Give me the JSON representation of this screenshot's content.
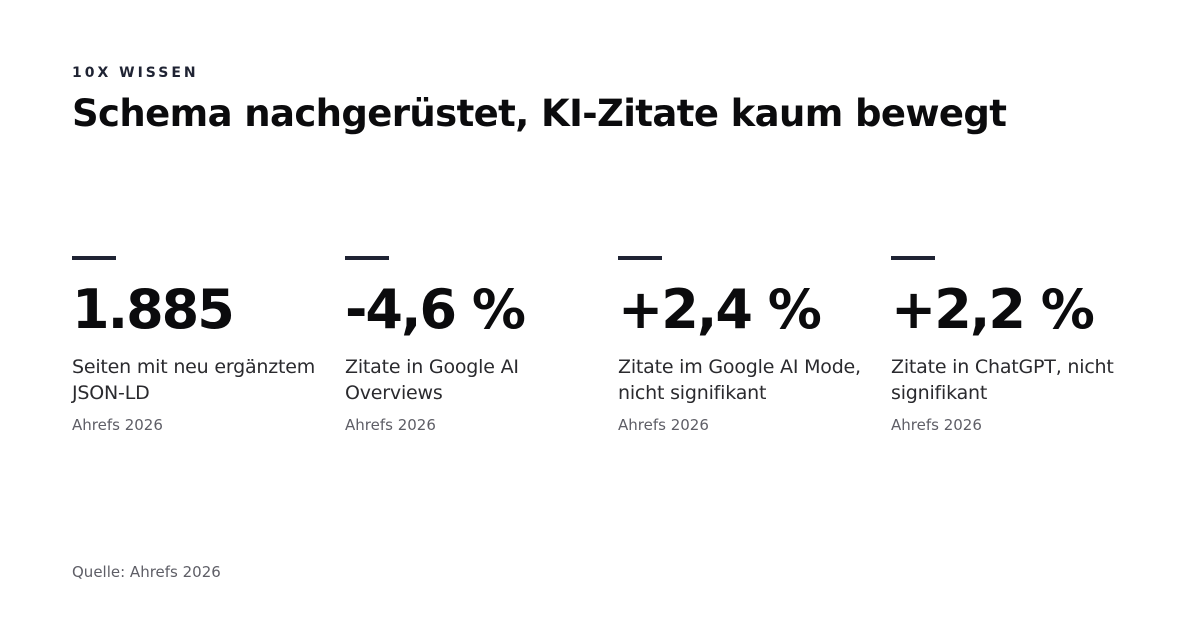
{
  "header": {
    "eyebrow": "10X WISSEN",
    "title": "Schema nachgerüstet, KI-Zitate kaum bewegt"
  },
  "stats": [
    {
      "value": "1.885",
      "label": "Seiten mit neu ergänztem JSON-LD",
      "source": "Ahrefs 2026"
    },
    {
      "value": "-4,6 %",
      "label": "Zitate in Google AI Overviews",
      "source": "Ahrefs 2026"
    },
    {
      "value": "+2,4 %",
      "label": "Zitate im Google AI Mode, nicht signifikant",
      "source": "Ahrefs 2026"
    },
    {
      "value": "+2,2 %",
      "label": "Zitate in ChatGPT, nicht signifikant",
      "source": "Ahrefs 2026"
    }
  ],
  "footer": {
    "source": "Quelle: Ahrefs 2026"
  },
  "colors": {
    "background": "#ffffff",
    "text": "#0b0b0d",
    "accent_rule": "#1f2333",
    "muted": "#5e5e66"
  }
}
